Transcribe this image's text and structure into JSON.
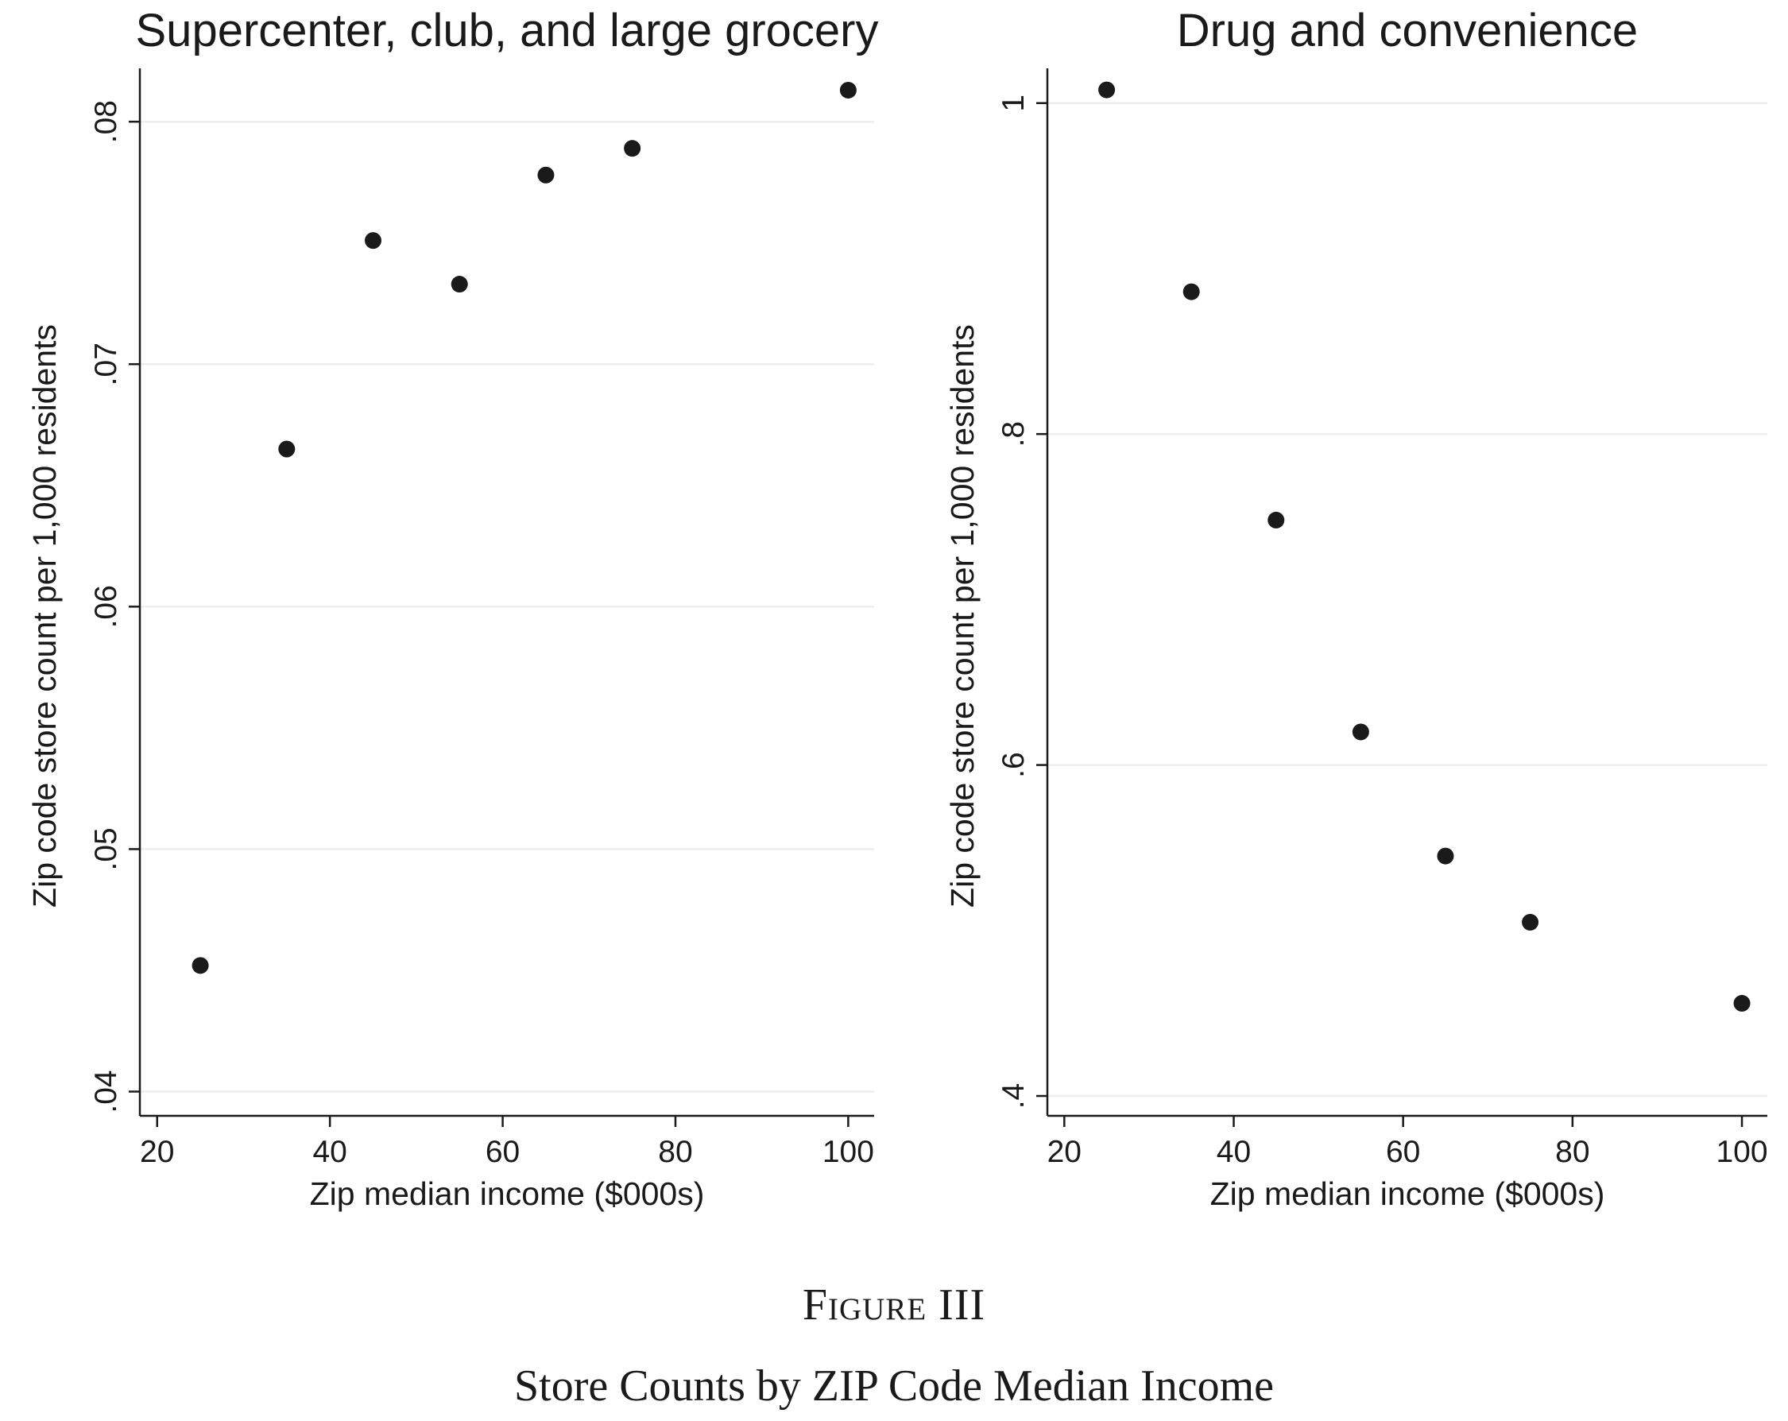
{
  "figure": {
    "number": "Figure III",
    "caption": "Store Counts by ZIP Code Median Income"
  },
  "chart_data": [
    {
      "type": "scatter",
      "title": "Supercenter, club, and large grocery",
      "xlabel": "Zip median income ($000s)",
      "ylabel": "Zip code store count per 1,000 residents",
      "xlim": [
        18,
        103
      ],
      "ylim": [
        0.039,
        0.0822
      ],
      "xticks": [
        20,
        40,
        60,
        80,
        100
      ],
      "xtick_labels": [
        "20",
        "40",
        "60",
        "80",
        "100"
      ],
      "yticks": [
        0.04,
        0.05,
        0.06,
        0.07,
        0.08
      ],
      "ytick_labels": [
        ".04",
        ".05",
        ".06",
        ".07",
        ".08"
      ],
      "grid": true,
      "points": [
        {
          "x": 25,
          "y": 0.0452
        },
        {
          "x": 35,
          "y": 0.0665
        },
        {
          "x": 45,
          "y": 0.0751
        },
        {
          "x": 55,
          "y": 0.0733
        },
        {
          "x": 65,
          "y": 0.0778
        },
        {
          "x": 75,
          "y": 0.0789
        },
        {
          "x": 100,
          "y": 0.0813
        }
      ],
      "color": "#1a1a1a"
    },
    {
      "type": "scatter",
      "title": "Drug and convenience",
      "xlabel": "Zip median income ($000s)",
      "ylabel": "Zip code store count per 1,000 residents",
      "xlim": [
        18,
        103
      ],
      "ylim": [
        0.388,
        1.021
      ],
      "xticks": [
        20,
        40,
        60,
        80,
        100
      ],
      "xtick_labels": [
        "20",
        "40",
        "60",
        "80",
        "100"
      ],
      "yticks": [
        0.4,
        0.6,
        0.8,
        1.0
      ],
      "ytick_labels": [
        ".4",
        ".6",
        ".8",
        "1"
      ],
      "grid": true,
      "points": [
        {
          "x": 25,
          "y": 1.008
        },
        {
          "x": 35,
          "y": 0.886
        },
        {
          "x": 45,
          "y": 0.748
        },
        {
          "x": 55,
          "y": 0.62
        },
        {
          "x": 65,
          "y": 0.545
        },
        {
          "x": 75,
          "y": 0.505
        },
        {
          "x": 100,
          "y": 0.456
        }
      ],
      "color": "#1a1a1a"
    }
  ]
}
